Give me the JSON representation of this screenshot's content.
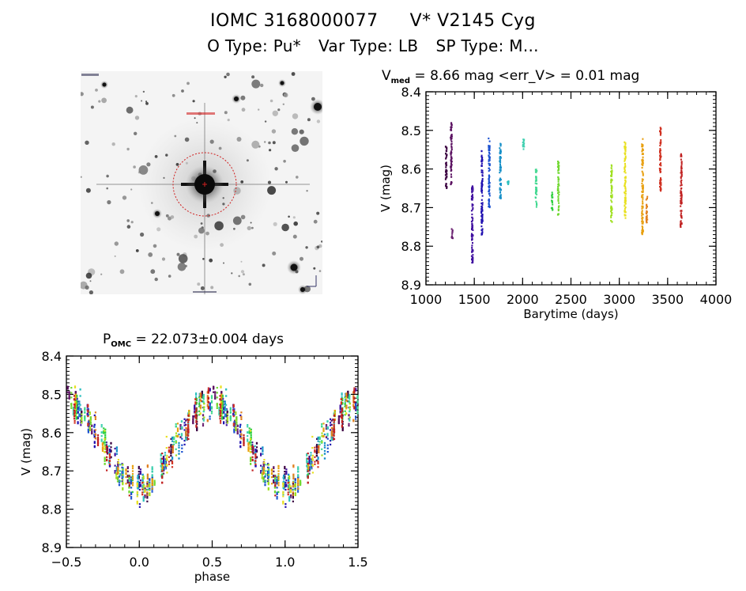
{
  "header": {
    "object_id": "IOMC 3168000077",
    "object_name": "V* V2145 Cyg",
    "o_type": "O Type: Pu*",
    "var_type": "Var Type: LB",
    "sp_type": "SP Type: M..."
  },
  "image_panel": {
    "description": "sky-image-cutout",
    "marker_color": "#d02020"
  },
  "chart_data": [
    {
      "type": "scatter",
      "name": "light-curve",
      "title_main": "V",
      "title_sub": "med",
      "title_rest": " = 8.66 mag <err_V> = 0.01 mag",
      "xlabel": "Barytime (days)",
      "ylabel": "V (mag)",
      "xlim": [
        1000,
        4000
      ],
      "ylim": [
        8.4,
        8.9
      ],
      "y_inverted": false,
      "xticks": [
        "1000",
        "1500",
        "2000",
        "2500",
        "3000",
        "3500",
        "4000"
      ],
      "yticks": [
        "8.4",
        "8.5",
        "8.6",
        "8.7",
        "8.8",
        "8.9"
      ],
      "grid": false,
      "legend": "none",
      "seasons": [
        {
          "t": 1210,
          "vmin": 8.54,
          "vmax": 8.65,
          "color": "#3a0040"
        },
        {
          "t": 1262,
          "vmin": 8.48,
          "vmax": 8.65,
          "color": "#5a1060"
        },
        {
          "t": 1272,
          "vmin": 8.75,
          "vmax": 8.78,
          "color": "#6a2070"
        },
        {
          "t": 1480,
          "vmin": 8.64,
          "vmax": 8.85,
          "color": "#4010a0"
        },
        {
          "t": 1580,
          "vmin": 8.55,
          "vmax": 8.77,
          "color": "#2010b0"
        },
        {
          "t": 1655,
          "vmin": 8.52,
          "vmax": 8.7,
          "color": "#1a50d0"
        },
        {
          "t": 1770,
          "vmin": 8.53,
          "vmax": 8.68,
          "color": "#1890c8"
        },
        {
          "t": 1850,
          "vmin": 8.63,
          "vmax": 8.64,
          "color": "#30c0c0"
        },
        {
          "t": 2010,
          "vmin": 8.52,
          "vmax": 8.55,
          "color": "#40d0b0"
        },
        {
          "t": 2140,
          "vmin": 8.6,
          "vmax": 8.7,
          "color": "#40d890"
        },
        {
          "t": 2305,
          "vmin": 8.66,
          "vmax": 8.71,
          "color": "#30d040"
        },
        {
          "t": 2370,
          "vmin": 8.58,
          "vmax": 8.72,
          "color": "#70d830"
        },
        {
          "t": 2920,
          "vmin": 8.59,
          "vmax": 8.74,
          "color": "#a0e020"
        },
        {
          "t": 3060,
          "vmin": 8.53,
          "vmax": 8.73,
          "color": "#e8e020"
        },
        {
          "t": 3240,
          "vmin": 8.52,
          "vmax": 8.77,
          "color": "#e8a010"
        },
        {
          "t": 3285,
          "vmin": 8.67,
          "vmax": 8.74,
          "color": "#e08020"
        },
        {
          "t": 3425,
          "vmin": 8.49,
          "vmax": 8.66,
          "color": "#d03020"
        },
        {
          "t": 3640,
          "vmin": 8.56,
          "vmax": 8.75,
          "color": "#c02020"
        }
      ]
    },
    {
      "type": "scatter",
      "name": "phase-curve",
      "title_main": "P",
      "title_sub": "OMC",
      "title_rest": " = 22.073±0.004 days",
      "period_days": 22.073,
      "xlabel": "phase",
      "ylabel": "V (mag)",
      "xlim": [
        -0.5,
        1.5
      ],
      "ylim": [
        8.4,
        8.9
      ],
      "xticks": [
        "−0.5",
        "0.0",
        "0.5",
        "1.0",
        "1.5"
      ],
      "yticks": [
        "8.4",
        "8.5",
        "8.6",
        "8.7",
        "8.8",
        "8.9"
      ],
      "grid": false,
      "legend": "none",
      "mean_curve": {
        "phase_min": 0.0,
        "v_max_faint": 8.74,
        "v_min_bright": 8.52,
        "phase_max": 0.45
      }
    }
  ]
}
